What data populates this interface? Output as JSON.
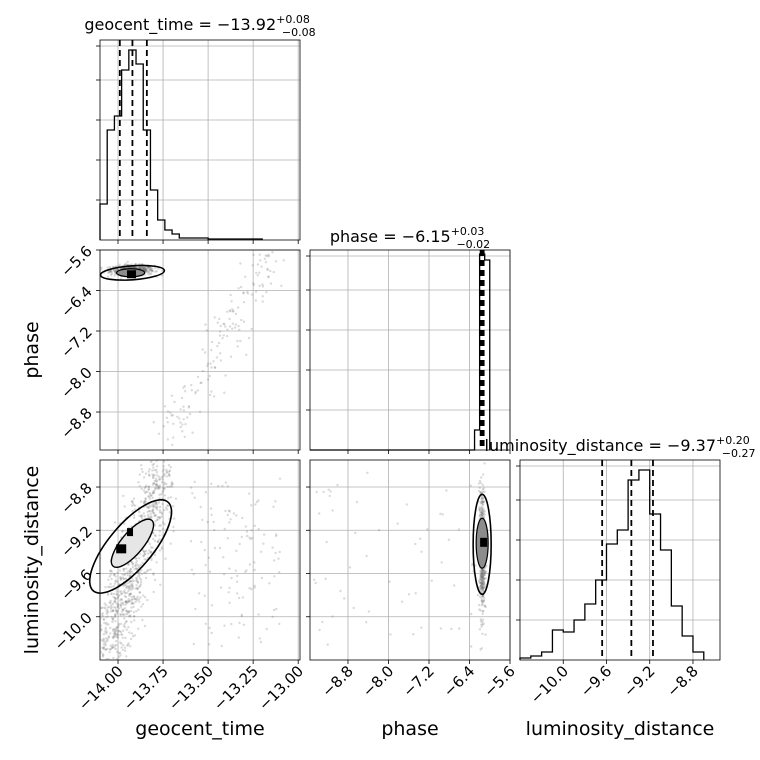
{
  "chart_data": {
    "type": "corner",
    "parameters": [
      "geocent_time",
      "phase",
      "luminosity_distance"
    ],
    "axes": {
      "geocent_time": {
        "label": "geocent_time",
        "range": [
          -14.1,
          -12.99
        ],
        "ticks": [
          -14.0,
          -13.75,
          -13.5,
          -13.25,
          -13.0
        ],
        "ticklabels": [
          "−14.00",
          "−13.75",
          "−13.50",
          "−13.25",
          "−13.00"
        ]
      },
      "phase": {
        "label": "phase",
        "range": [
          -9.55,
          -5.6
        ],
        "ticks": [
          -8.8,
          -8.0,
          -7.2,
          -6.4,
          -5.6
        ],
        "ticklabels": [
          "−8.8",
          "−8.0",
          "−7.2",
          "−6.4",
          "−5.6"
        ]
      },
      "luminosity_distance": {
        "label": "luminosity_distance",
        "range": [
          -10.4,
          -8.55
        ],
        "ticks": [
          -10.0,
          -9.6,
          -9.2,
          -8.8
        ],
        "ticklabels": [
          "−10.0",
          "−9.6",
          "−9.2",
          "−8.8"
        ]
      }
    },
    "titles": {
      "geocent_time": {
        "name": "geocent_time",
        "median": "−13.92",
        "plus": "+0.08",
        "minus": "−0.08"
      },
      "phase": {
        "name": "phase",
        "median": "−6.15",
        "plus": "+0.03",
        "minus": "−0.02"
      },
      "luminosity_distance": {
        "name": "luminosity_distance",
        "median": "−9.37",
        "plus": "+0.20",
        "minus": "−0.27"
      }
    },
    "quantiles": {
      "geocent_time": [
        -13.99,
        -13.92,
        -13.84
      ],
      "phase": [
        -6.18,
        -6.15,
        -6.12
      ],
      "luminosity_distance": [
        -9.64,
        -9.37,
        -9.17
      ]
    },
    "histograms": {
      "geocent_time": {
        "bin_edges": [
          -14.1,
          -14.06,
          -14.02,
          -13.98,
          -13.94,
          -13.9,
          -13.86,
          -13.82,
          -13.78,
          -13.74,
          -13.7,
          -13.66,
          -13.5,
          -13.2
        ],
        "counts": [
          0.18,
          0.55,
          0.62,
          0.85,
          0.95,
          0.88,
          0.55,
          0.25,
          0.1,
          0.05,
          0.03,
          0.01,
          0.005
        ]
      },
      "phase": {
        "bin_edges": [
          -9.55,
          -6.3,
          -6.2,
          -6.1,
          -6.0
        ],
        "counts": [
          0.0,
          0.1,
          0.98,
          0.95
        ]
      },
      "luminosity_distance": {
        "bin_edges": [
          -10.4,
          -10.3,
          -10.2,
          -10.1,
          -10.0,
          -9.9,
          -9.8,
          -9.7,
          -9.6,
          -9.5,
          -9.4,
          -9.3,
          -9.2,
          -9.1,
          -9.0,
          -8.9,
          -8.8,
          -8.7
        ],
        "counts": [
          0.01,
          0.02,
          0.04,
          0.15,
          0.14,
          0.2,
          0.28,
          0.4,
          0.58,
          0.65,
          0.9,
          0.95,
          0.73,
          0.55,
          0.27,
          0.12,
          0.04
        ]
      }
    },
    "ylim_hist": [
      0,
      1.0
    ],
    "grid": true
  }
}
